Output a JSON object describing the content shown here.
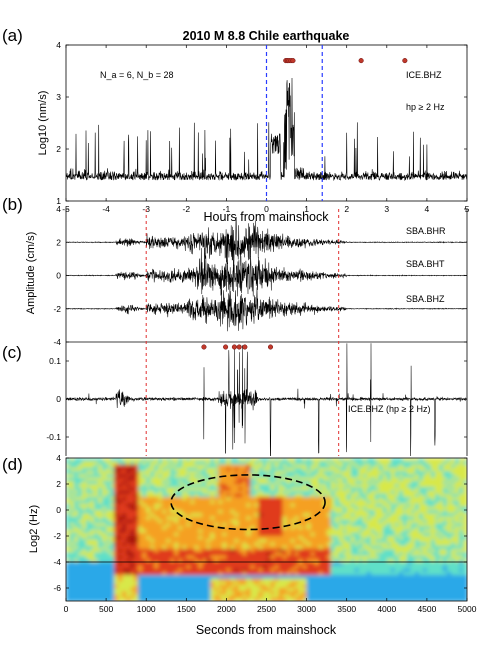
{
  "chart_data": [
    {
      "panel": "(a)",
      "type": "line",
      "title": "2010 M  8.8 Chile earthquake",
      "xlabel": "Hours from mainshock",
      "ylabel": "Log10 (nm/s)",
      "xlim": [
        -5,
        5
      ],
      "ylim": [
        1,
        4
      ],
      "xticks": [
        "-5",
        "-4",
        "-3",
        "-2",
        "-1",
        "0",
        "1",
        "2",
        "3",
        "4",
        "5"
      ],
      "yticks": [
        "1",
        "2",
        "3",
        "4"
      ],
      "station": "ICE.BHZ",
      "filter": "hp ≥ 2 Hz",
      "counts": "N_a = 6, N_b = 28",
      "window_lines_hours": [
        0,
        1.39
      ],
      "event_markers_hours": [
        0.48,
        0.52,
        0.56,
        0.61,
        0.66,
        2.36,
        3.45
      ],
      "event_marker_level": 3.7,
      "background_level": 1.45,
      "trace_color": "#000000",
      "window_color": "#2a3cff",
      "marker_color": "#c0392b"
    },
    {
      "panel": "(b)",
      "type": "line",
      "ylabel": "Amplitude (cm/s)",
      "xlim": [
        0,
        5000
      ],
      "ylim": [
        -4,
        4
      ],
      "yticks": [
        "-4",
        "-2",
        "0",
        "2",
        "4"
      ],
      "series": [
        {
          "name": "SBA.BHR",
          "offset": 2
        },
        {
          "name": "SBA.BHT",
          "offset": 0
        },
        {
          "name": "SBA.BHZ",
          "offset": -2
        }
      ],
      "window_lines_seconds": [
        1000,
        3400
      ],
      "window_color": "#e03030"
    },
    {
      "panel": "(c)",
      "type": "line",
      "ylim": [
        -0.15,
        0.15
      ],
      "yticks": [
        "-0.1",
        "0",
        "0.1"
      ],
      "station": "ICE.BHZ (hp ≥ 2 Hz)",
      "event_markers_seconds": [
        1720,
        1990,
        2100,
        2160,
        2230,
        2550
      ],
      "window_lines_seconds": [
        1000,
        3400
      ]
    },
    {
      "panel": "(d)",
      "type": "heatmap",
      "xlabel": "Seconds from mainshock",
      "ylabel": "Log2 (Hz)",
      "xlim": [
        0,
        5000
      ],
      "ylim": [
        -7,
        4
      ],
      "xticks": [
        "0",
        "500",
        "1000",
        "1500",
        "2000",
        "2500",
        "3000",
        "3500",
        "4000",
        "4500",
        "5000"
      ],
      "yticks": [
        "-6",
        "-4",
        "-2",
        "0",
        "2",
        "4"
      ],
      "horizontal_line_log2hz": -4,
      "ellipse_center": [
        2270,
        0.6
      ],
      "ellipse_radii": [
        960,
        2.1
      ],
      "colormap": [
        "#1a3cf0",
        "#2aa8e8",
        "#5fe0c8",
        "#d8e84a",
        "#f5a020",
        "#e03a1c",
        "#a8140c"
      ]
    }
  ]
}
